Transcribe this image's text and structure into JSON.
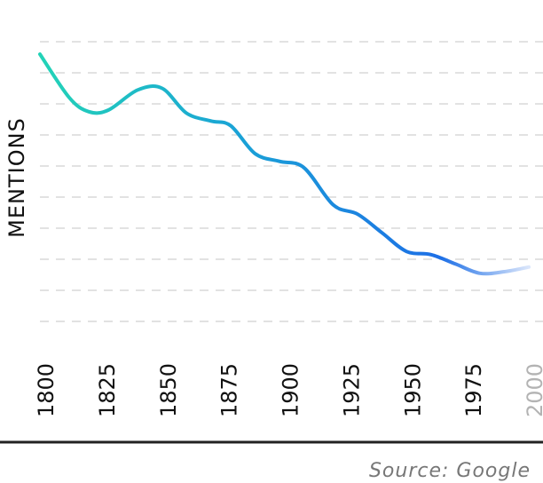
{
  "chart_data": {
    "type": "line",
    "ylabel": "MENTIONS",
    "xlabel": "",
    "x_ticks": [
      "1800",
      "1825",
      "1850",
      "1875",
      "1900",
      "1925",
      "1950",
      "1975",
      "2000"
    ],
    "xlim": [
      1800,
      2000
    ],
    "grid": true,
    "legend": "none",
    "series": [
      {
        "x": [
          1800,
          1812,
          1820,
          1828,
          1840,
          1850,
          1860,
          1870,
          1878,
          1888,
          1898,
          1908,
          1920,
          1930,
          1940,
          1950,
          1960,
          1970,
          1980,
          1990,
          2000
        ],
        "y": [
          8.6,
          7.2,
          6.75,
          6.8,
          7.45,
          7.5,
          6.7,
          6.45,
          6.3,
          5.4,
          5.15,
          4.95,
          3.75,
          3.45,
          2.85,
          2.25,
          2.15,
          1.85,
          1.55,
          1.6,
          1.75
        ]
      }
    ],
    "colors": {
      "line_start": "#23d3b7",
      "line_mid": "#1aa3d6",
      "line_end": "#1d6fe6",
      "line_fade": "#dbe6fb",
      "grid": "#d9d9d9",
      "baseline": "#222222"
    }
  },
  "footer": {
    "source": "Source: Google"
  }
}
